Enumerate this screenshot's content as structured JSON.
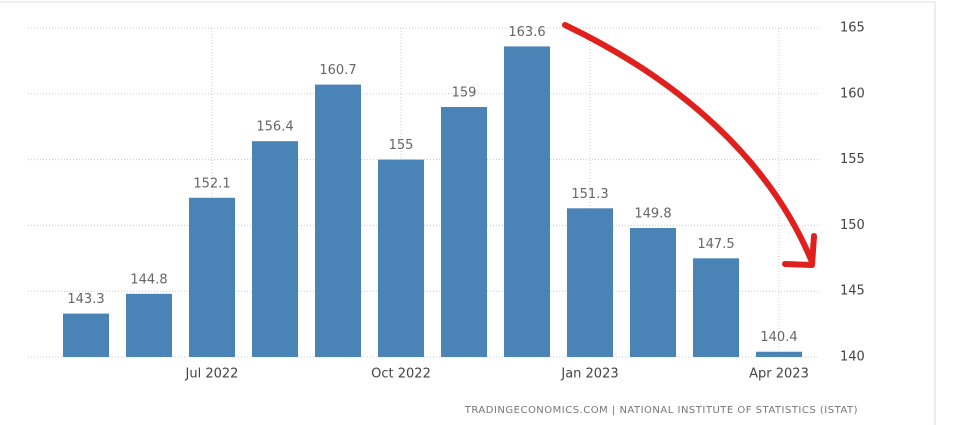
{
  "chart_data": {
    "type": "bar",
    "categories": [
      null,
      null,
      "Jul 2022",
      null,
      null,
      "Oct 2022",
      null,
      null,
      "Jan 2023",
      null,
      null,
      "Apr 2023"
    ],
    "values": [
      143.3,
      144.8,
      152.1,
      156.4,
      160.7,
      155,
      159,
      163.6,
      151.3,
      149.8,
      147.5,
      140.4
    ],
    "color": "#4a84b6",
    "ylim": [
      140,
      165
    ],
    "yticks": [
      140,
      145,
      150,
      155,
      160,
      165
    ],
    "grid": true,
    "source": "TRADINGECONOMICS.COM | NATIONAL INSTITUTE OF STATISTICS (ISTAT)"
  }
}
